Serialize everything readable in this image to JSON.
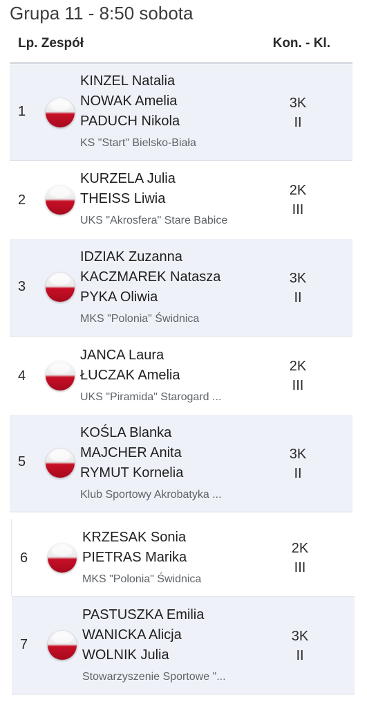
{
  "title": "Grupa 11 - 8:50 sobota",
  "header": {
    "lp_label": "Lp. Zespół",
    "kon_label": "Kon. - Kl."
  },
  "colors": {
    "shaded_row": "#eff1f8",
    "flag_white": "#ffffff",
    "flag_red": "#c70f26"
  },
  "rows": [
    {
      "lp": "1",
      "flag": "poland-flag-icon",
      "names": [
        "KINZEL Natalia",
        "NOWAK Amelia",
        "PADUCH Nikola"
      ],
      "club": "KS \"Start\" Bielsko-Biała",
      "kon": "3K",
      "kl": "II"
    },
    {
      "lp": "2",
      "flag": "poland-flag-icon",
      "names": [
        "KURZELA Julia",
        "THEISS Liwia"
      ],
      "club": "UKS \"Akrosfera\" Stare Babice",
      "kon": "2K",
      "kl": "III"
    },
    {
      "lp": "3",
      "flag": "poland-flag-icon",
      "names": [
        "IDZIAK Zuzanna",
        "KACZMAREK Natasza",
        "PYKA Oliwia"
      ],
      "club": "MKS \"Polonia\" Świdnica",
      "kon": "3K",
      "kl": "II"
    },
    {
      "lp": "4",
      "flag": "poland-flag-icon",
      "names": [
        "JANCA Laura",
        "ŁUCZAK Amelia"
      ],
      "club": "UKS \"Piramida\" Starogard ...",
      "kon": "2K",
      "kl": "III"
    },
    {
      "lp": "5",
      "flag": "poland-flag-icon",
      "names": [
        "KOŚLA Blanka",
        "MAJCHER Anita",
        "RYMUT Kornelia"
      ],
      "club": "Klub Sportowy Akrobatyka ...",
      "kon": "3K",
      "kl": "II"
    },
    {
      "lp": "6",
      "flag": "poland-flag-icon",
      "names": [
        "KRZESAK Sonia",
        "PIETRAS Marika"
      ],
      "club": "MKS \"Polonia\" Świdnica",
      "kon": "2K",
      "kl": "III"
    },
    {
      "lp": "7",
      "flag": "poland-flag-icon",
      "names": [
        "PASTUSZKA Emilia",
        "WANICKA Alicja",
        "WOLNIK Julia"
      ],
      "club": "Stowarzyszenie Sportowe \"...",
      "kon": "3K",
      "kl": "II"
    }
  ]
}
